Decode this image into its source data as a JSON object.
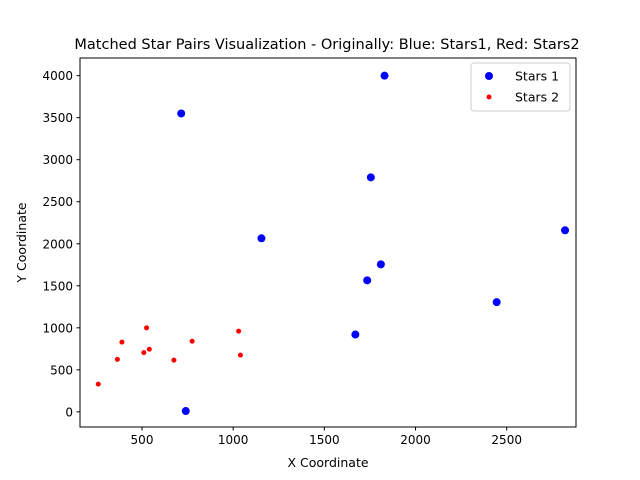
{
  "chart_data": {
    "type": "scatter",
    "title": "Matched Star Pairs Visualization - Originally: Blue: Stars1, Red: Stars2",
    "xlabel": "X Coordinate",
    "ylabel": "Y Coordinate",
    "xlim": [
      160,
      2880
    ],
    "ylim": [
      -180,
      4210
    ],
    "xticks": [
      500,
      1000,
      1500,
      2000,
      2500
    ],
    "yticks": [
      0,
      500,
      1000,
      1500,
      2000,
      2500,
      3000,
      3500,
      4000
    ],
    "grid": false,
    "legend_position": "top-right",
    "series": [
      {
        "name": "Stars 1",
        "color": "#0000ff",
        "marker": "large-dot",
        "points": [
          [
            1830,
            4000
          ],
          [
            715,
            3550
          ],
          [
            1755,
            2790
          ],
          [
            1155,
            2065
          ],
          [
            2820,
            2160
          ],
          [
            1810,
            1755
          ],
          [
            1735,
            1565
          ],
          [
            2445,
            1305
          ],
          [
            1670,
            920
          ],
          [
            740,
            10
          ]
        ]
      },
      {
        "name": "Stars 2",
        "color": "#ff0000",
        "marker": "small-dot",
        "points": [
          [
            525,
            1000
          ],
          [
            1030,
            960
          ],
          [
            390,
            830
          ],
          [
            775,
            840
          ],
          [
            540,
            745
          ],
          [
            510,
            705
          ],
          [
            1040,
            675
          ],
          [
            365,
            625
          ],
          [
            675,
            615
          ],
          [
            260,
            330
          ]
        ]
      }
    ]
  }
}
